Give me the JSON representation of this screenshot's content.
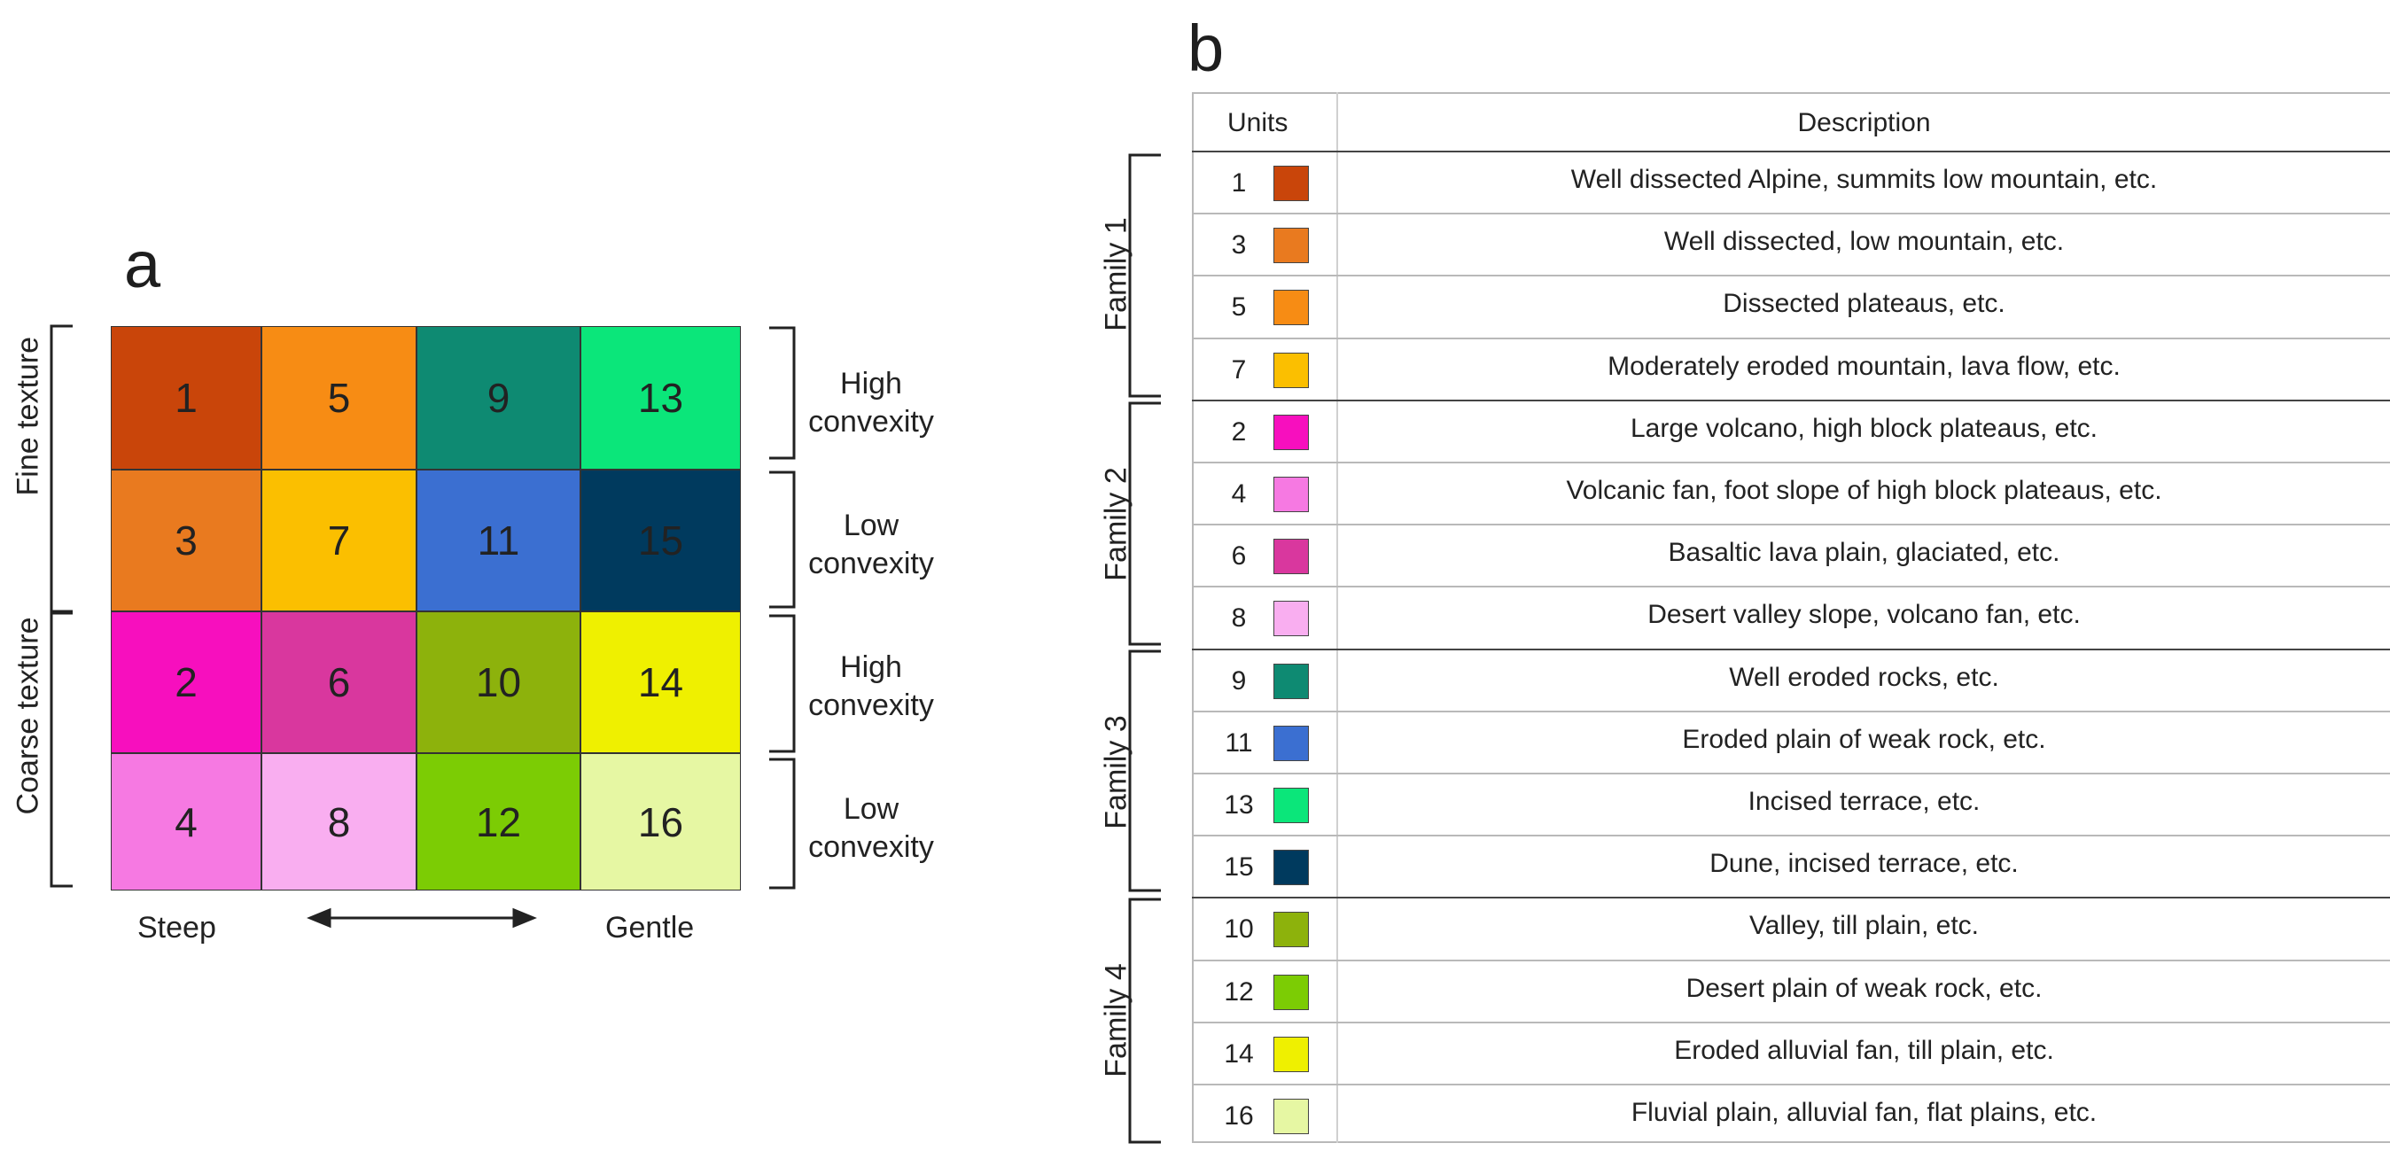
{
  "panel_a": {
    "letter": "a",
    "cells": [
      {
        "label": "1",
        "color": "#c9450a"
      },
      {
        "label": "5",
        "color": "#f78c14"
      },
      {
        "label": "9",
        "color": "#0e8a72"
      },
      {
        "label": "13",
        "color": "#0be67a"
      },
      {
        "label": "3",
        "color": "#e97a1f"
      },
      {
        "label": "7",
        "color": "#fbbf00"
      },
      {
        "label": "11",
        "color": "#3b6fd1"
      },
      {
        "label": "15",
        "color": "#003a5e"
      },
      {
        "label": "2",
        "color": "#f70fbe"
      },
      {
        "label": "6",
        "color": "#d9379e"
      },
      {
        "label": "10",
        "color": "#8db20c"
      },
      {
        "label": "14",
        "color": "#eff000"
      },
      {
        "label": "4",
        "color": "#f679e2"
      },
      {
        "label": "8",
        "color": "#f9aef0"
      },
      {
        "label": "12",
        "color": "#7ccc04"
      },
      {
        "label": "16",
        "color": "#e6f7a3"
      }
    ],
    "left_labels": [
      "Fine texture",
      "Coarse texture"
    ],
    "right_labels": [
      {
        "line1": "High",
        "line2": "convexity"
      },
      {
        "line1": "Low",
        "line2": "convexity"
      },
      {
        "line1": "High",
        "line2": "convexity"
      },
      {
        "line1": "Low",
        "line2": "convexity"
      }
    ],
    "axis": {
      "left": "Steep",
      "right": "Gentle"
    }
  },
  "panel_b": {
    "letter": "b",
    "header": {
      "units": "Units",
      "description": "Description"
    },
    "families": [
      "Family 1",
      "Family 2",
      "Family 3",
      "Family 4"
    ],
    "rows": [
      {
        "unit": "1",
        "color": "#c9450a",
        "description": "Well dissected Alpine, summits low mountain, etc."
      },
      {
        "unit": "3",
        "color": "#e97a1f",
        "description": "Well dissected, low mountain, etc."
      },
      {
        "unit": "5",
        "color": "#f78c14",
        "description": "Dissected plateaus, etc."
      },
      {
        "unit": "7",
        "color": "#fbbf00",
        "description": "Moderately eroded mountain, lava flow, etc."
      },
      {
        "unit": "2",
        "color": "#f70fbe",
        "description": "Large volcano, high block plateaus, etc."
      },
      {
        "unit": "4",
        "color": "#f679e2",
        "description": "Volcanic fan, foot slope of high block plateaus, etc."
      },
      {
        "unit": "6",
        "color": "#d9379e",
        "description": "Basaltic lava plain, glaciated, etc."
      },
      {
        "unit": "8",
        "color": "#f9aef0",
        "description": "Desert valley slope, volcano fan, etc."
      },
      {
        "unit": "9",
        "color": "#0e8a72",
        "description": "Well eroded rocks, etc."
      },
      {
        "unit": "11",
        "color": "#3b6fd1",
        "description": "Eroded plain of weak rock, etc."
      },
      {
        "unit": "13",
        "color": "#0be67a",
        "description": "Incised terrace, etc."
      },
      {
        "unit": "15",
        "color": "#003a5e",
        "description": "Dune, incised terrace, etc."
      },
      {
        "unit": "10",
        "color": "#8db20c",
        "description": "Valley, till plain, etc."
      },
      {
        "unit": "12",
        "color": "#7ccc04",
        "description": "Desert plain of weak rock, etc."
      },
      {
        "unit": "14",
        "color": "#eff000",
        "description": "Eroded alluvial fan, till plain, etc."
      },
      {
        "unit": "16",
        "color": "#e6f7a3",
        "description": "Fluvial plain, alluvial fan, flat plains, etc."
      }
    ]
  }
}
